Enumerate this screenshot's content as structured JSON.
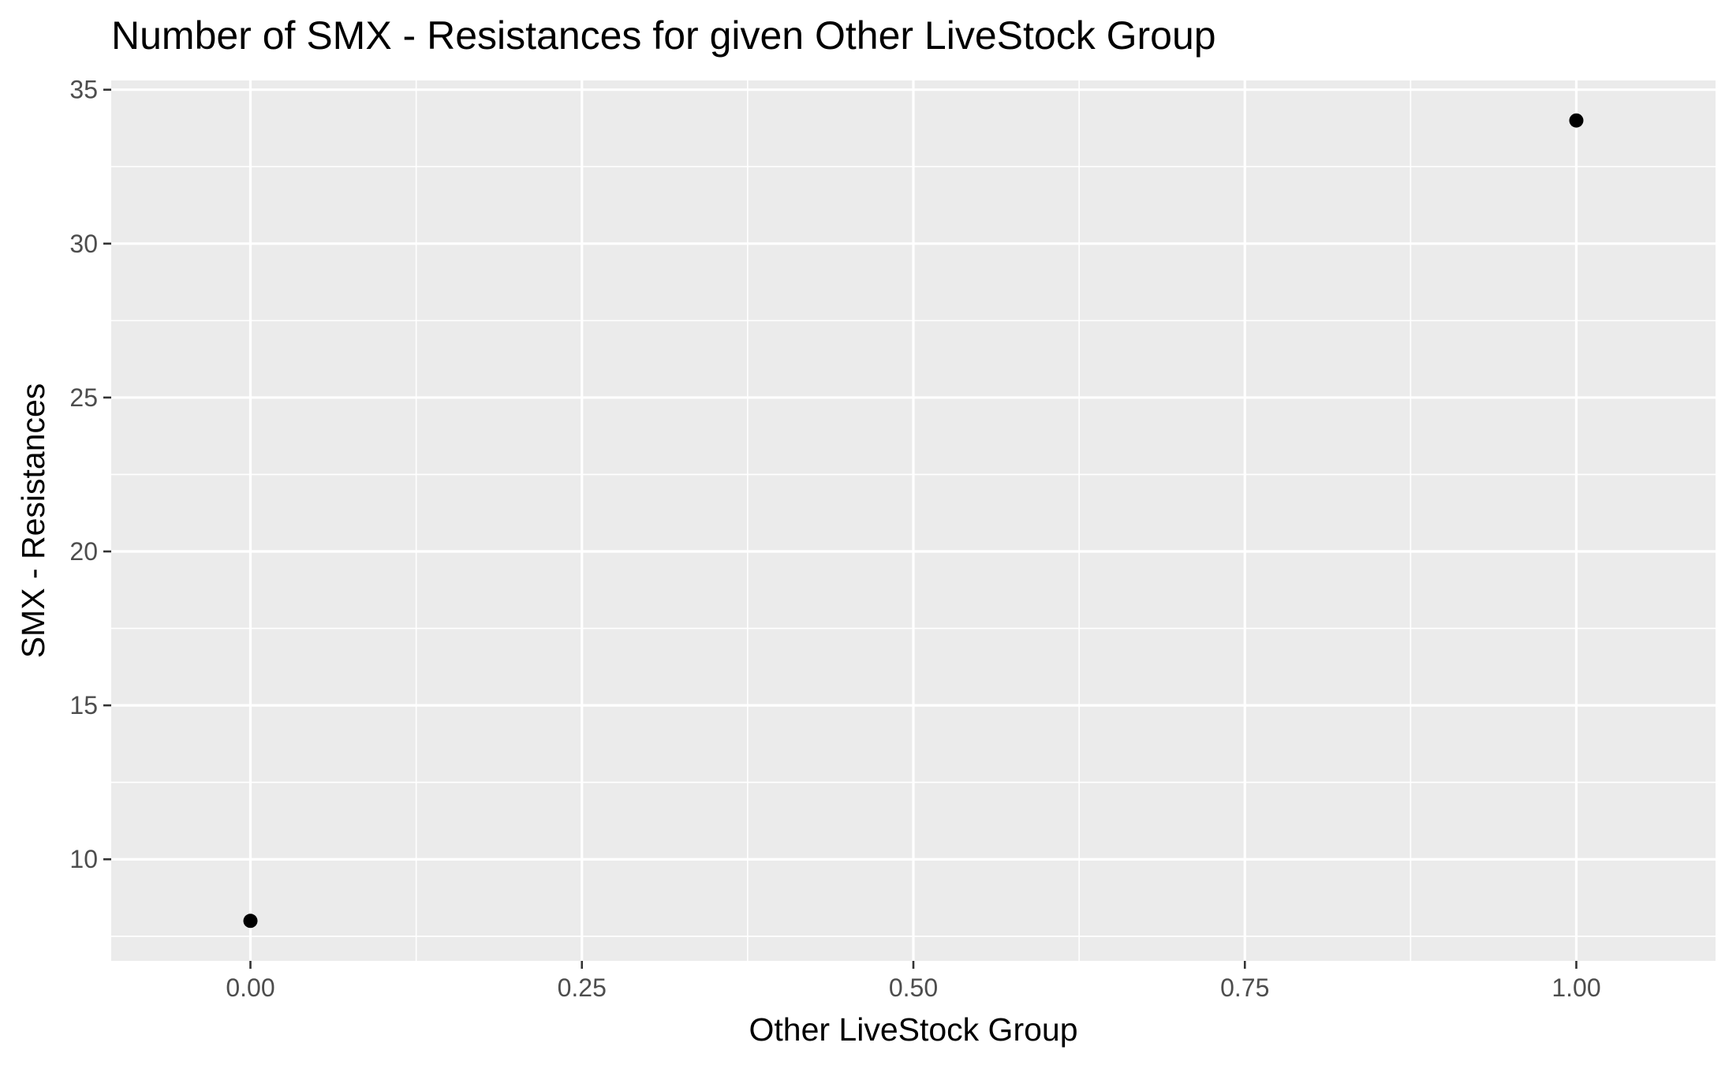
{
  "chart_data": {
    "type": "scatter",
    "title": "Number of SMX - Resistances for given Other LiveStock Group",
    "xlabel": "Other LiveStock Group",
    "ylabel": "SMX - Resistances",
    "x_ticks": [
      "0.00",
      "0.25",
      "0.50",
      "0.75",
      "1.00"
    ],
    "y_ticks": [
      "10",
      "15",
      "20",
      "25",
      "30",
      "35"
    ],
    "xlim": [
      -0.105,
      1.105
    ],
    "ylim": [
      6.7,
      35.3
    ],
    "grid": true,
    "points": [
      {
        "x": 0,
        "y": 8
      },
      {
        "x": 1,
        "y": 34
      }
    ],
    "colors": {
      "panel": "#EBEBEB",
      "grid": "#FFFFFF",
      "point": "#000000",
      "tick_text": "#4D4D4D",
      "tick_mark": "#333333"
    }
  }
}
